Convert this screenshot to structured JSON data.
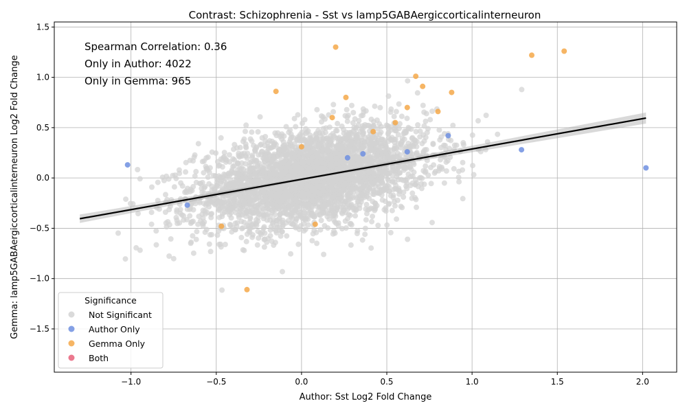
{
  "chart_data": {
    "type": "scatter",
    "title": "Contrast: Schizophrenia - Sst vs lamp5GABAergiccorticalinterneuron",
    "xlabel": "Author: Sst Log2 Fold Change",
    "ylabel": "Gemma: lamp5GABAergiccorticalinterneuron Log2 Fold Change",
    "xlim": [
      -1.45,
      2.2
    ],
    "ylim": [
      -1.93,
      1.55
    ],
    "xticks": [
      -1.0,
      -0.5,
      0.0,
      0.5,
      1.0,
      1.5,
      2.0
    ],
    "yticks": [
      -1.5,
      -1.0,
      -0.5,
      0.0,
      0.5,
      1.0,
      1.5
    ],
    "xtick_labels": [
      "−1.0",
      "−0.5",
      "0.0",
      "0.5",
      "1.0",
      "1.5",
      "2.0"
    ],
    "ytick_labels": [
      "−1.5",
      "−1.0",
      "−0.5",
      "0.0",
      "0.5",
      "1.0",
      "1.5"
    ],
    "grid": true,
    "annotations": [
      "Spearman Correlation: 0.36",
      "Only in Author: 4022",
      "Only in Gemma: 965"
    ],
    "regression": {
      "x": [
        -1.3,
        2.02
      ],
      "y": [
        -0.405,
        0.595
      ]
    },
    "legend": {
      "title": "Significance",
      "position": "lower-left",
      "entries": [
        {
          "label": "Not Significant",
          "color": "#d3d3d3"
        },
        {
          "label": "Author Only",
          "color": "#6f8fe0"
        },
        {
          "label": "Gemma Only",
          "color": "#f5a849"
        },
        {
          "label": "Both",
          "color": "#e8607a"
        }
      ]
    },
    "series": [
      {
        "name": "Author Only",
        "color": "#6f8fe0",
        "points": [
          [
            -1.02,
            0.13
          ],
          [
            -0.67,
            -0.27
          ],
          [
            0.62,
            0.26
          ],
          [
            0.86,
            0.42
          ],
          [
            1.29,
            0.28
          ],
          [
            2.02,
            0.1
          ],
          [
            0.27,
            0.2
          ],
          [
            0.36,
            0.24
          ]
        ]
      },
      {
        "name": "Gemma Only",
        "color": "#f5a849",
        "points": [
          [
            0.2,
            1.3
          ],
          [
            -0.15,
            0.86
          ],
          [
            0.26,
            0.8
          ],
          [
            0.67,
            1.01
          ],
          [
            0.71,
            0.91
          ],
          [
            1.35,
            1.22
          ],
          [
            1.54,
            1.26
          ],
          [
            0.62,
            0.7
          ],
          [
            0.8,
            0.66
          ],
          [
            0.18,
            0.6
          ],
          [
            0.55,
            0.55
          ],
          [
            0.42,
            0.46
          ],
          [
            0.0,
            0.31
          ],
          [
            0.08,
            -0.46
          ],
          [
            -0.47,
            -0.48
          ],
          [
            -0.32,
            -1.11
          ],
          [
            0.88,
            0.85
          ]
        ]
      }
    ]
  }
}
